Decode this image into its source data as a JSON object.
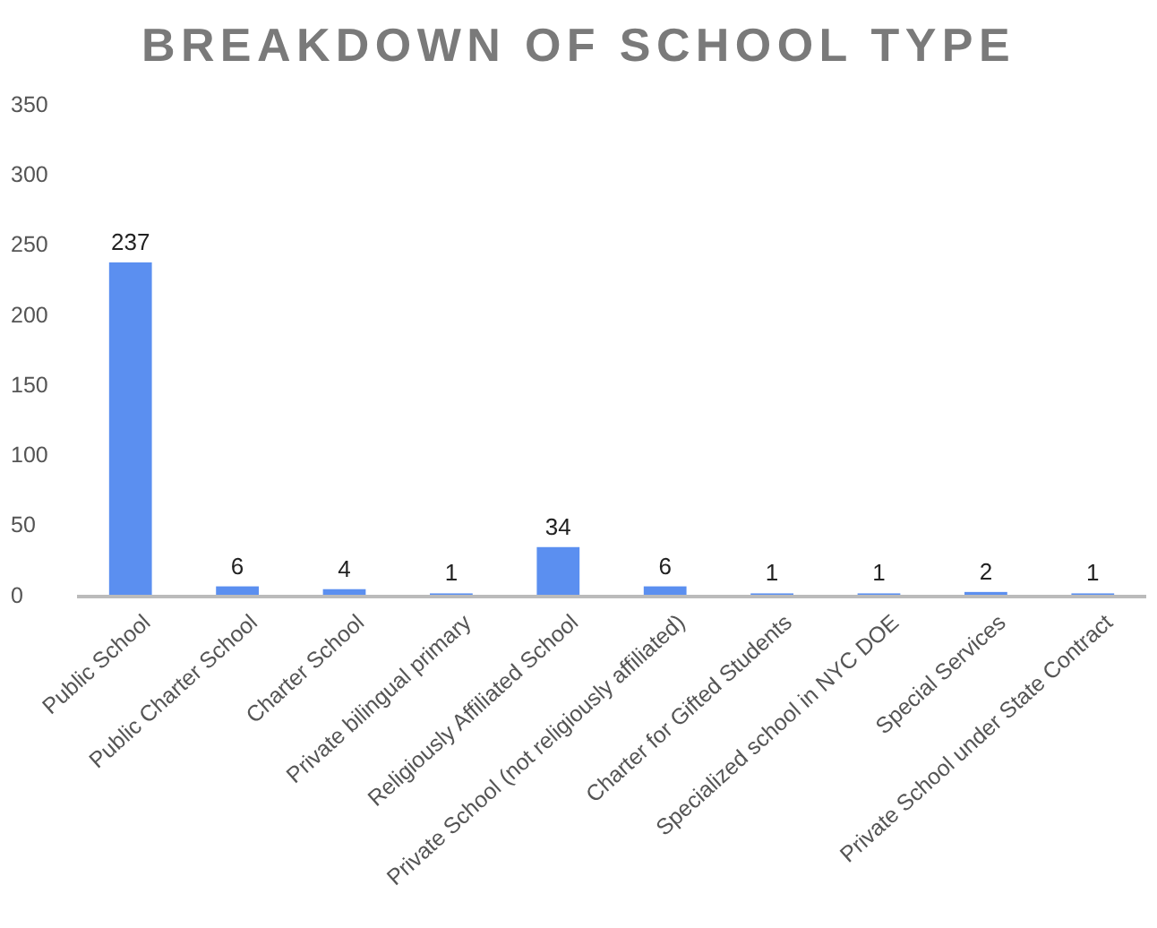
{
  "chart_data": {
    "type": "bar",
    "title": "BREAKDOWN OF SCHOOL TYPE",
    "categories": [
      "Public School",
      "Public Charter School",
      "Charter School",
      "Private bilingual primary",
      "Religiously Affiliated School",
      "Private School (not religiously affiliated)",
      "Charter for Gifted Students",
      "Specialized school in NYC DOE",
      "Special Services",
      "Private School under State Contract"
    ],
    "values": [
      237,
      6,
      4,
      1,
      34,
      6,
      1,
      1,
      2,
      1
    ],
    "color": "#5b8ff0",
    "ylim": [
      0,
      350
    ],
    "yticks": [
      0,
      50,
      100,
      150,
      200,
      250,
      300,
      350
    ],
    "grid": false,
    "data_labels": true
  }
}
